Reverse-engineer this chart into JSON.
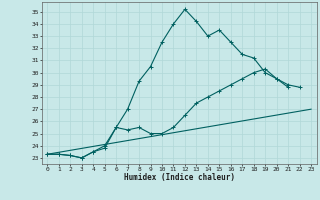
{
  "xlabel": "Humidex (Indice chaleur)",
  "background_color": "#c8e8e8",
  "grid_color": "#b0d8d8",
  "line_color": "#006060",
  "xlim": [
    -0.5,
    23.5
  ],
  "ylim": [
    22.5,
    35.8
  ],
  "xticks": [
    0,
    1,
    2,
    3,
    4,
    5,
    6,
    7,
    8,
    9,
    10,
    11,
    12,
    13,
    14,
    15,
    16,
    17,
    18,
    19,
    20,
    21,
    22,
    23
  ],
  "yticks": [
    23,
    24,
    25,
    26,
    27,
    28,
    29,
    30,
    31,
    32,
    33,
    34,
    35
  ],
  "line1_x": [
    0,
    1,
    2,
    3,
    4,
    5,
    6,
    7,
    8,
    9,
    10,
    11,
    12,
    13,
    14,
    15,
    16,
    17,
    18,
    19,
    20,
    21,
    22,
    23
  ],
  "line1_y": [
    23.3,
    23.3,
    23.2,
    23.0,
    23.5,
    24.0,
    25.5,
    27.0,
    29.3,
    30.5,
    32.5,
    34.0,
    35.2,
    34.2,
    33.0,
    33.5,
    32.5,
    31.5,
    31.2,
    30.0,
    29.5,
    28.8,
    null,
    null
  ],
  "line2_x": [
    0,
    1,
    2,
    3,
    4,
    5,
    6,
    7,
    8,
    9,
    10,
    11,
    12,
    13,
    14,
    15,
    16,
    17,
    18,
    19,
    20,
    21,
    22,
    23
  ],
  "line2_y": [
    23.3,
    23.3,
    23.2,
    23.0,
    23.5,
    23.8,
    25.5,
    25.3,
    25.5,
    25.0,
    25.0,
    25.5,
    26.5,
    27.5,
    28.0,
    28.5,
    29.0,
    29.5,
    30.0,
    30.3,
    29.5,
    29.0,
    28.8,
    null
  ],
  "line3_x": [
    0,
    23
  ],
  "line3_y": [
    23.3,
    27.0
  ]
}
